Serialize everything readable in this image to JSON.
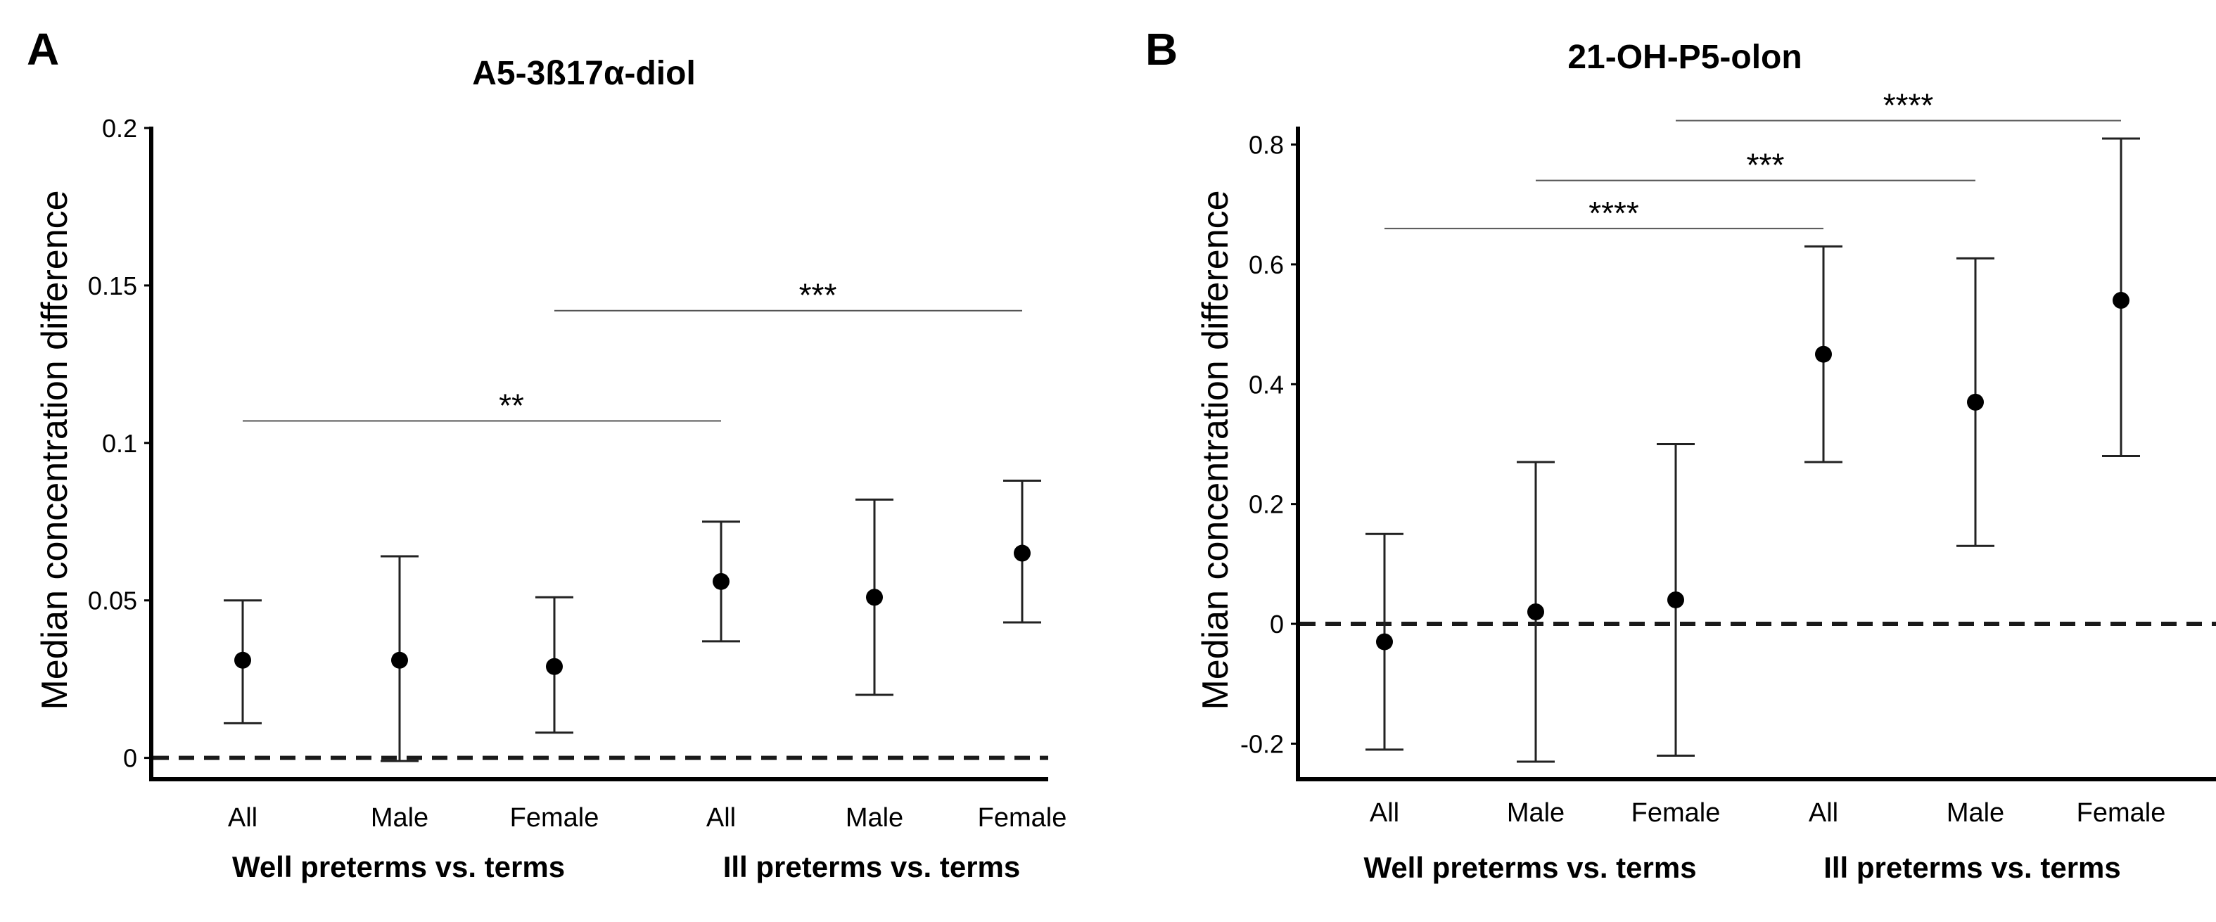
{
  "chart_data": [
    {
      "panel": "A",
      "type": "scatter",
      "title": "A5-3ß17α-diol",
      "ylabel": "Median concentration difference",
      "xlabel": "",
      "ylim": [
        -0.005,
        0.2
      ],
      "yticks": [
        0,
        0.05,
        0.1,
        0.15,
        0.2
      ],
      "ytick_labels": [
        "0",
        "0.05",
        "0.1",
        "0.15",
        "0.2"
      ],
      "reference_line": 0,
      "categories": [
        "All",
        "Male",
        "Female",
        "All",
        "Male",
        "Female"
      ],
      "groups": [
        {
          "label": "Well preterms vs. terms",
          "from": 0,
          "to": 2
        },
        {
          "label": "Ill preterms vs. terms",
          "from": 3,
          "to": 5
        }
      ],
      "points": [
        {
          "category": "All",
          "median": 0.031,
          "lower": 0.011,
          "upper": 0.05
        },
        {
          "category": "Male",
          "median": 0.031,
          "lower": -0.001,
          "upper": 0.064
        },
        {
          "category": "Female",
          "median": 0.029,
          "lower": 0.008,
          "upper": 0.051
        },
        {
          "category": "All",
          "median": 0.056,
          "lower": 0.037,
          "upper": 0.075
        },
        {
          "category": "Male",
          "median": 0.051,
          "lower": 0.02,
          "upper": 0.082
        },
        {
          "category": "Female",
          "median": 0.065,
          "lower": 0.043,
          "upper": 0.088
        }
      ],
      "significance": [
        {
          "label": "**",
          "from": 0,
          "to": 3,
          "y": 0.107
        },
        {
          "label": "***",
          "from": 2,
          "to": 5,
          "y": 0.142
        }
      ]
    },
    {
      "panel": "B",
      "type": "scatter",
      "title": "21-OH-P5-olon",
      "ylabel": "Median concentration difference",
      "xlabel": "",
      "ylim": [
        -0.25,
        0.83
      ],
      "yticks": [
        -0.2,
        0,
        0.2,
        0.4,
        0.6,
        0.8
      ],
      "ytick_labels": [
        "-0.2",
        "0",
        "0.2",
        "0.4",
        "0.6",
        "0.8"
      ],
      "reference_line": 0,
      "categories": [
        "All",
        "Male",
        "Female",
        "All",
        "Male",
        "Female"
      ],
      "groups": [
        {
          "label": "Well preterms vs. terms",
          "from": 0,
          "to": 2
        },
        {
          "label": "Ill preterms vs. terms",
          "from": 3,
          "to": 5
        }
      ],
      "points": [
        {
          "category": "All",
          "median": -0.03,
          "lower": -0.21,
          "upper": 0.15
        },
        {
          "category": "Male",
          "median": 0.02,
          "lower": -0.23,
          "upper": 0.27
        },
        {
          "category": "Female",
          "median": 0.04,
          "lower": -0.22,
          "upper": 0.3
        },
        {
          "category": "All",
          "median": 0.45,
          "lower": 0.27,
          "upper": 0.63
        },
        {
          "category": "Male",
          "median": 0.37,
          "lower": 0.13,
          "upper": 0.61
        },
        {
          "category": "Female",
          "median": 0.54,
          "lower": 0.28,
          "upper": 0.81
        }
      ],
      "significance": [
        {
          "label": "****",
          "from": 0,
          "to": 3,
          "y": 0.66
        },
        {
          "label": "***",
          "from": 1,
          "to": 4,
          "y": 0.74
        },
        {
          "label": "****",
          "from": 2,
          "to": 5,
          "y": 0.84
        }
      ]
    }
  ]
}
